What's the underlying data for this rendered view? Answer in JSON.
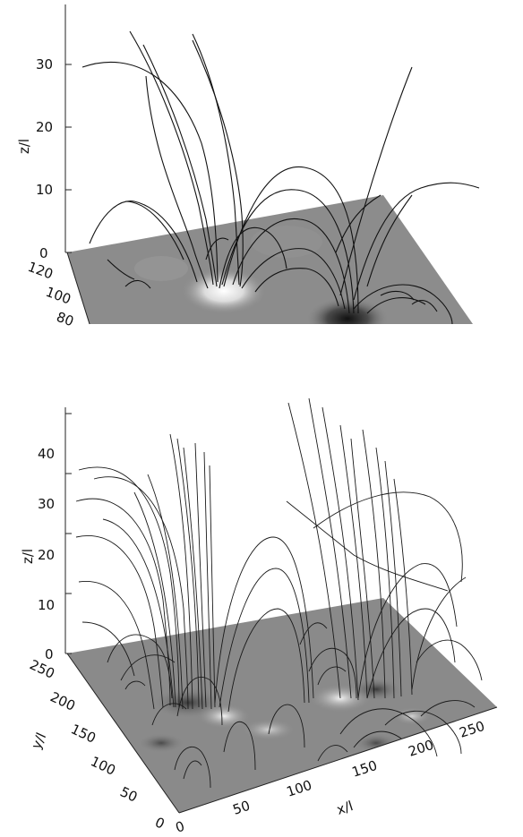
{
  "top_plot": {
    "z_axis_label": "z/l",
    "z_ticks": [
      "0",
      "10",
      "20",
      "30"
    ],
    "y_ticks": [
      "120",
      "100",
      "80"
    ]
  },
  "bottom_plot": {
    "z_axis_label": "z/l",
    "y_axis_label": "y/l",
    "x_axis_label": "x/l",
    "z_ticks": [
      "0",
      "10",
      "20",
      "30",
      "40"
    ],
    "y_ticks": [
      "250",
      "200",
      "150",
      "100",
      "50",
      "0"
    ],
    "x_ticks": [
      "0",
      "50",
      "100",
      "150",
      "200",
      "250"
    ]
  }
}
